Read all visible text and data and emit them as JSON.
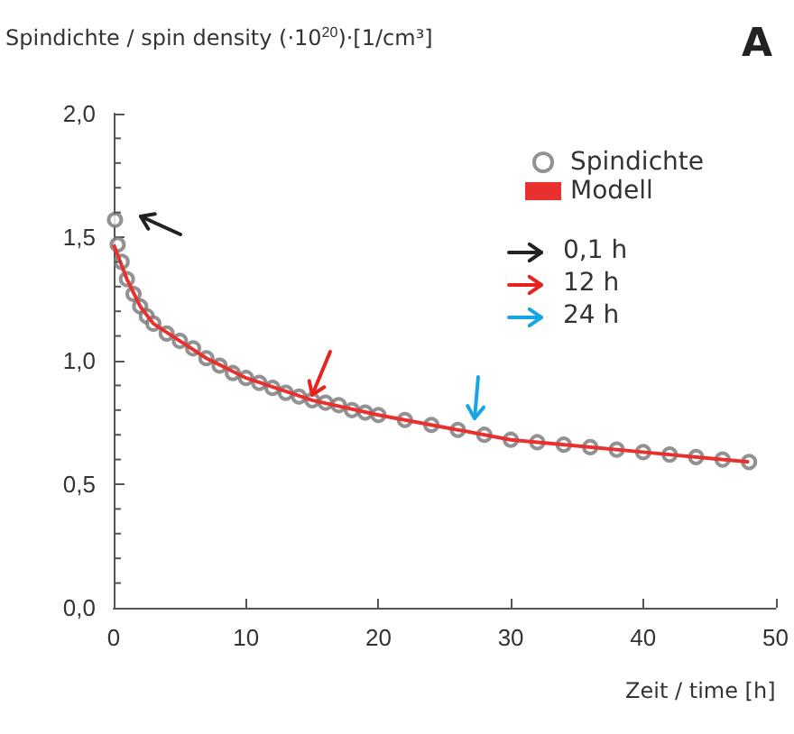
{
  "chart_data": {
    "type": "scatter",
    "ylabel": "Spindichte / spin density (·10$^{20}$)·[1/cm³]",
    "xlabel": "Zeit / time [h]",
    "series": [
      {
        "name": "Spindichte",
        "marker": "circle",
        "color": "#777777",
        "x": [
          0.1,
          0.3,
          0.6,
          1,
          1.5,
          2,
          2.5,
          3,
          4,
          5,
          6,
          7,
          8,
          9,
          10,
          11,
          12,
          13,
          14,
          15,
          16,
          17,
          18,
          19,
          20,
          22,
          24,
          26,
          28,
          30,
          32,
          34,
          36,
          38,
          40,
          42,
          44,
          46,
          48
        ],
        "values": [
          1.57,
          1.47,
          1.4,
          1.33,
          1.27,
          1.22,
          1.18,
          1.15,
          1.11,
          1.08,
          1.05,
          1.01,
          0.98,
          0.95,
          0.93,
          0.91,
          0.89,
          0.87,
          0.855,
          0.84,
          0.83,
          0.82,
          0.8,
          0.79,
          0.78,
          0.76,
          0.74,
          0.72,
          0.7,
          0.68,
          0.67,
          0.66,
          0.65,
          0.64,
          0.63,
          0.62,
          0.61,
          0.6,
          0.59
        ]
      },
      {
        "name": "Modell",
        "type": "line",
        "marker": "none",
        "color": "#e8312f",
        "x": [
          0,
          0.5,
          1,
          2,
          3,
          5,
          7,
          10,
          15,
          20,
          25,
          30,
          35,
          40,
          45,
          48
        ],
        "values": [
          1.47,
          1.4,
          1.33,
          1.22,
          1.15,
          1.08,
          1.01,
          0.93,
          0.84,
          0.78,
          0.73,
          0.68,
          0.655,
          0.63,
          0.605,
          0.59
        ]
      }
    ],
    "xlim": [
      0,
      50
    ],
    "xticks": [
      0,
      10,
      20,
      30,
      40,
      50
    ],
    "ylim": [
      0,
      2
    ],
    "yticks": [
      {
        "value": 0,
        "label": "0,0"
      },
      {
        "value": 0.5,
        "label": "0,5"
      },
      {
        "value": 1,
        "label": "1,0"
      },
      {
        "value": 1.5,
        "label": "1,5"
      },
      {
        "value": 2,
        "label": "2,0"
      }
    ],
    "grid": false,
    "legend": "top right",
    "annotations": [
      "0,1 h",
      "12 h",
      "24 h",
      "A"
    ]
  }
}
